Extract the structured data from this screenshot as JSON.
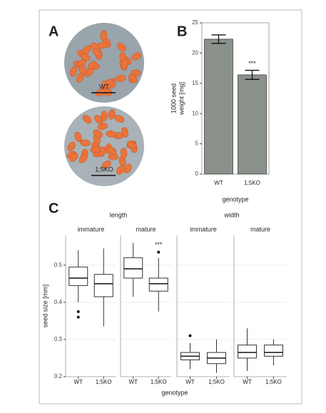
{
  "panels": {
    "a": {
      "label": "A",
      "images": [
        "WT",
        "1;5KO"
      ]
    }
  },
  "chart_data": [
    {
      "type": "bar",
      "label": "B",
      "ylabel": [
        "1000 seed",
        "weight [mg]"
      ],
      "xlabel": "genotype",
      "categories": [
        "WT",
        "1;5KO"
      ],
      "values": [
        22.3,
        16.4
      ],
      "errors": [
        0.7,
        0.75
      ],
      "annotations": [
        null,
        "***"
      ],
      "color": "#8a918a",
      "ylim": [
        0,
        25
      ],
      "yticks": [
        0,
        5,
        10,
        15,
        20,
        25
      ]
    },
    {
      "type": "box",
      "label": "C",
      "ylabel": "seed size [mm]",
      "xlabel": "genotype",
      "ylim": [
        0.2,
        0.58
      ],
      "yticks": [
        0.2,
        0.3,
        0.4,
        0.5
      ],
      "grid": true,
      "facets": [
        {
          "strip": "length",
          "panels": [
            {
              "title": "immature",
              "categories": [
                "WT",
                "1;5KO"
              ],
              "boxes": [
                {
                  "min": 0.4,
                  "q1": 0.445,
                  "median": 0.465,
                  "q3": 0.495,
                  "max": 0.54,
                  "outliers": [
                    0.375,
                    0.36
                  ]
                },
                {
                  "min": 0.335,
                  "q1": 0.415,
                  "median": 0.45,
                  "q3": 0.475,
                  "max": 0.545,
                  "outliers": []
                }
              ]
            },
            {
              "title": "mature",
              "categories": [
                "WT",
                "1;5KO"
              ],
              "annotations": [
                null,
                "***"
              ],
              "boxes": [
                {
                  "min": 0.415,
                  "q1": 0.465,
                  "median": 0.49,
                  "q3": 0.52,
                  "max": 0.56,
                  "outliers": []
                },
                {
                  "min": 0.375,
                  "q1": 0.43,
                  "median": 0.45,
                  "q3": 0.465,
                  "max": 0.52,
                  "outliers": [
                    0.535
                  ]
                }
              ]
            }
          ]
        },
        {
          "strip": "width",
          "panels": [
            {
              "title": "immature",
              "categories": [
                "WT",
                "1;5KO"
              ],
              "boxes": [
                {
                  "min": 0.22,
                  "q1": 0.245,
                  "median": 0.255,
                  "q3": 0.265,
                  "max": 0.29,
                  "outliers": [
                    0.31
                  ]
                },
                {
                  "min": 0.21,
                  "q1": 0.235,
                  "median": 0.25,
                  "q3": 0.265,
                  "max": 0.3,
                  "outliers": []
                }
              ]
            },
            {
              "title": "mature",
              "categories": [
                "WT",
                "1;5KO"
              ],
              "boxes": [
                {
                  "min": 0.215,
                  "q1": 0.25,
                  "median": 0.265,
                  "q3": 0.285,
                  "max": 0.33,
                  "outliers": []
                },
                {
                  "min": 0.23,
                  "q1": 0.255,
                  "median": 0.265,
                  "q3": 0.285,
                  "max": 0.3,
                  "outliers": []
                }
              ]
            }
          ]
        }
      ]
    }
  ]
}
